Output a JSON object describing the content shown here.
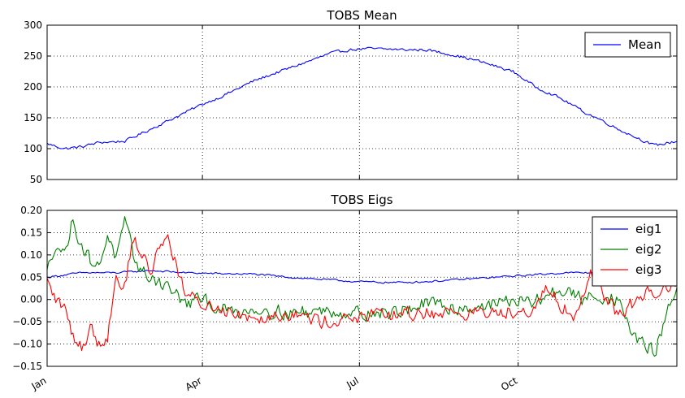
{
  "chart_data": [
    {
      "type": "line",
      "title": "TOBS Mean",
      "xlabel": "",
      "ylabel": "",
      "x_range": [
        0,
        365
      ],
      "xticks": [
        0,
        90,
        181,
        273
      ],
      "xtick_labels": [
        "Jan",
        "Apr",
        "Jul",
        "Oct"
      ],
      "xtick_labels_visible": false,
      "ylim": [
        50,
        300
      ],
      "yticks": [
        50,
        100,
        150,
        200,
        250,
        300
      ],
      "ytick_labels": [
        "50",
        "100",
        "150",
        "200",
        "250",
        "300"
      ],
      "grid": true,
      "legend_placement": "top-right",
      "series": [
        {
          "name": "Mean",
          "color": "#0000ff",
          "keypoints": [
            [
              0,
              108
            ],
            [
              10,
              100
            ],
            [
              20,
              103
            ],
            [
              30,
              110
            ],
            [
              45,
              112
            ],
            [
              55,
              125
            ],
            [
              70,
              145
            ],
            [
              90,
              172
            ],
            [
              100,
              183
            ],
            [
              120,
              210
            ],
            [
              140,
              230
            ],
            [
              155,
              245
            ],
            [
              165,
              255
            ],
            [
              175,
              260
            ],
            [
              185,
              262
            ],
            [
              200,
              261
            ],
            [
              210,
              260
            ],
            [
              220,
              260
            ],
            [
              235,
              252
            ],
            [
              250,
              242
            ],
            [
              270,
              225
            ],
            [
              283,
              200
            ],
            [
              295,
              185
            ],
            [
              305,
              170
            ],
            [
              312,
              158
            ],
            [
              320,
              148
            ],
            [
              330,
              133
            ],
            [
              340,
              120
            ],
            [
              352,
              105
            ],
            [
              365,
              112
            ]
          ]
        }
      ]
    },
    {
      "type": "line",
      "title": "TOBS Eigs",
      "xlabel": "",
      "ylabel": "",
      "x_range": [
        0,
        365
      ],
      "xticks": [
        0,
        90,
        181,
        273
      ],
      "xtick_labels": [
        "Jan",
        "Apr",
        "Jul",
        "Oct"
      ],
      "ylim": [
        -0.15,
        0.2
      ],
      "yticks": [
        -0.15,
        -0.1,
        -0.05,
        0.0,
        0.05,
        0.1,
        0.15,
        0.2
      ],
      "ytick_labels": [
        "−0.15",
        "−0.10",
        "−0.05",
        "0.00",
        "0.05",
        "0.10",
        "0.15",
        "0.20"
      ],
      "grid": true,
      "legend_placement": "top-right",
      "series": [
        {
          "name": "eig1",
          "color": "#0000ff",
          "keypoints": [
            [
              0,
              0.05
            ],
            [
              10,
              0.055
            ],
            [
              20,
              0.06
            ],
            [
              40,
              0.06
            ],
            [
              60,
              0.065
            ],
            [
              80,
              0.06
            ],
            [
              100,
              0.058
            ],
            [
              120,
              0.057
            ],
            [
              140,
              0.05
            ],
            [
              160,
              0.045
            ],
            [
              180,
              0.04
            ],
            [
              200,
              0.038
            ],
            [
              220,
              0.04
            ],
            [
              240,
              0.045
            ],
            [
              260,
              0.05
            ],
            [
              280,
              0.055
            ],
            [
              300,
              0.06
            ],
            [
              320,
              0.06
            ],
            [
              340,
              0.057
            ],
            [
              365,
              0.055
            ]
          ]
        },
        {
          "name": "eig2",
          "color": "#008000",
          "keypoints": [
            [
              0,
              0.06
            ],
            [
              5,
              0.13
            ],
            [
              10,
              0.1
            ],
            [
              15,
              0.18
            ],
            [
              20,
              0.12
            ],
            [
              25,
              0.09
            ],
            [
              30,
              0.07
            ],
            [
              35,
              0.15
            ],
            [
              40,
              0.09
            ],
            [
              45,
              0.17
            ],
            [
              50,
              0.1
            ],
            [
              55,
              0.06
            ],
            [
              60,
              0.05
            ],
            [
              70,
              0.03
            ],
            [
              80,
              -0.01
            ],
            [
              90,
              0.0
            ],
            [
              100,
              -0.02
            ],
            [
              110,
              -0.03
            ],
            [
              120,
              -0.02
            ],
            [
              140,
              -0.03
            ],
            [
              160,
              -0.025
            ],
            [
              180,
              -0.03
            ],
            [
              200,
              -0.03
            ],
            [
              220,
              -0.01
            ],
            [
              240,
              -0.02
            ],
            [
              260,
              -0.01
            ],
            [
              270,
              0.0
            ],
            [
              280,
              -0.01
            ],
            [
              290,
              0.01
            ],
            [
              300,
              0.02
            ],
            [
              310,
              0.0
            ],
            [
              320,
              0.01
            ],
            [
              330,
              0.0
            ],
            [
              340,
              -0.08
            ],
            [
              345,
              -0.1
            ],
            [
              352,
              -0.12
            ],
            [
              358,
              -0.05
            ],
            [
              362,
              0.0
            ],
            [
              365,
              0.02
            ]
          ]
        },
        {
          "name": "eig3",
          "color": "#ff0000",
          "keypoints": [
            [
              0,
              0.04
            ],
            [
              5,
              0.0
            ],
            [
              10,
              -0.02
            ],
            [
              15,
              -0.08
            ],
            [
              20,
              -0.11
            ],
            [
              25,
              -0.06
            ],
            [
              30,
              -0.1
            ],
            [
              35,
              -0.08
            ],
            [
              40,
              0.05
            ],
            [
              45,
              0.03
            ],
            [
              50,
              0.14
            ],
            [
              55,
              0.1
            ],
            [
              60,
              0.06
            ],
            [
              65,
              0.12
            ],
            [
              70,
              0.14
            ],
            [
              75,
              0.08
            ],
            [
              80,
              0.01
            ],
            [
              90,
              -0.01
            ],
            [
              100,
              -0.02
            ],
            [
              110,
              -0.03
            ],
            [
              120,
              -0.04
            ],
            [
              140,
              -0.03
            ],
            [
              160,
              -0.05
            ],
            [
              180,
              -0.04
            ],
            [
              200,
              -0.035
            ],
            [
              220,
              -0.03
            ],
            [
              240,
              -0.03
            ],
            [
              260,
              -0.03
            ],
            [
              280,
              -0.02
            ],
            [
              290,
              0.02
            ],
            [
              300,
              -0.02
            ],
            [
              305,
              -0.05
            ],
            [
              315,
              0.06
            ],
            [
              320,
              0.03
            ],
            [
              330,
              -0.03
            ],
            [
              340,
              -0.01
            ],
            [
              350,
              0.02
            ],
            [
              360,
              0.03
            ],
            [
              365,
              0.04
            ]
          ]
        }
      ]
    }
  ]
}
